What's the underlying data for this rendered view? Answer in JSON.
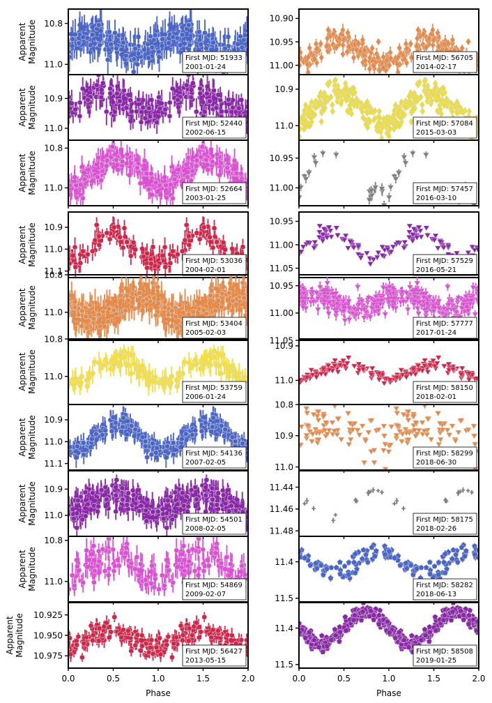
{
  "figure": {
    "ylabel": "Apparent\nMagnitude",
    "xlabel": "Phase",
    "xticks": [
      "0.0",
      "0.5",
      "1.0",
      "1.5",
      "2.0"
    ],
    "legend_prefix": "First MJD: "
  },
  "chart_data": [
    {
      "type": "scatter",
      "col": 0,
      "row": 0,
      "mjd": "51933",
      "date": "2001-01-24",
      "color": "#4a65c8",
      "marker": "circle",
      "ylim": [
        10.73,
        11.05
      ],
      "yticks": [
        "10.8",
        "11.0"
      ],
      "ytick_vals": [
        10.8,
        11.0
      ],
      "center": 10.9,
      "amp": 0.04,
      "noise": 0.035,
      "err": 0.05,
      "n": 150,
      "peak": 0.25,
      "title": "",
      "xlabel": "Phase",
      "ylabel": "Apparent Magnitude"
    },
    {
      "type": "scatter",
      "col": 0,
      "row": 1,
      "mjd": "52440",
      "date": "2002-06-15",
      "color": "#8a27a8",
      "marker": "circle",
      "ylim": [
        10.82,
        11.04
      ],
      "yticks": [
        "10.9",
        "11.0"
      ],
      "ytick_vals": [
        10.9,
        11.0
      ],
      "center": 10.92,
      "amp": 0.035,
      "noise": 0.025,
      "err": 0.03,
      "n": 110,
      "peak": 0.4
    },
    {
      "type": "scatter",
      "col": 0,
      "row": 2,
      "mjd": "52664",
      "date": "2003-01-25",
      "color": "#dd4fd4",
      "marker": "circle",
      "ylim": [
        10.76,
        11.09
      ],
      "yticks": [
        "10.8",
        "11.0"
      ],
      "ytick_vals": [
        10.8,
        11.0
      ],
      "center": 10.92,
      "amp": 0.07,
      "noise": 0.03,
      "err": 0.04,
      "n": 160,
      "peak": 0.55
    },
    {
      "type": "scatter",
      "col": 0,
      "row": 3,
      "mjd": "53036",
      "date": "2004-02-01",
      "color": "#d1254a",
      "marker": "circle",
      "ylim": [
        10.83,
        11.13
      ],
      "yticks": [
        "10.9",
        "11.0",
        "11.1"
      ],
      "ytick_vals": [
        10.9,
        11.0,
        11.1
      ],
      "center": 10.99,
      "amp": 0.07,
      "noise": 0.025,
      "err": 0.03,
      "n": 80,
      "peak": 0.5
    },
    {
      "type": "scatter",
      "col": 0,
      "row": 4,
      "mjd": "53404",
      "date": "2005-02-03",
      "color": "#e58a48",
      "marker": "circle",
      "ylim": [
        10.8,
        11.15
      ],
      "yticks": [
        "10.8",
        "11.0"
      ],
      "ytick_vals": [
        10.8,
        11.0
      ],
      "center": 10.97,
      "amp": 0.06,
      "noise": 0.035,
      "err": 0.05,
      "n": 220,
      "peak": 0.8
    },
    {
      "type": "scatter",
      "col": 0,
      "row": 5,
      "mjd": "53759",
      "date": "2006-01-24",
      "color": "#f5df3a",
      "marker": "circle",
      "ylim": [
        10.8,
        11.15
      ],
      "yticks": [
        "10.8",
        "11.0"
      ],
      "ytick_vals": [
        10.8,
        11.0
      ],
      "center": 10.97,
      "amp": 0.06,
      "noise": 0.025,
      "err": 0.04,
      "n": 70,
      "peak": 0.55
    },
    {
      "type": "scatter",
      "col": 0,
      "row": 6,
      "mjd": "54136",
      "date": "2007-02-05",
      "color": "#4a65c8",
      "marker": "circle",
      "ylim": [
        10.83,
        11.13
      ],
      "yticks": [
        "10.9",
        "11.0",
        "11.1"
      ],
      "ytick_vals": [
        10.9,
        11.0,
        11.1
      ],
      "center": 10.98,
      "amp": 0.06,
      "noise": 0.02,
      "err": 0.03,
      "n": 160,
      "peak": 0.55
    },
    {
      "type": "scatter",
      "col": 0,
      "row": 7,
      "mjd": "54501",
      "date": "2008-02-05",
      "color": "#8a27a8",
      "marker": "circle",
      "ylim": [
        10.83,
        11.08
      ],
      "yticks": [
        "10.9",
        "11.0"
      ],
      "ytick_vals": [
        10.9,
        11.0
      ],
      "center": 10.95,
      "amp": 0.03,
      "noise": 0.025,
      "err": 0.03,
      "n": 170,
      "peak": 0.5
    },
    {
      "type": "scatter",
      "col": 0,
      "row": 8,
      "mjd": "54869",
      "date": "2009-02-07",
      "color": "#dd4fd4",
      "marker": "circle",
      "ylim": [
        10.78,
        11.1
      ],
      "yticks": [
        "10.8",
        "11.0"
      ],
      "ytick_vals": [
        10.8,
        11.0
      ],
      "center": 10.93,
      "amp": 0.04,
      "noise": 0.04,
      "err": 0.04,
      "n": 80,
      "peak": 0.5
    },
    {
      "type": "scatter",
      "col": 0,
      "row": 9,
      "mjd": "56427",
      "date": "2013-05-15",
      "color": "#d1254a",
      "marker": "circle",
      "ylim": [
        10.91,
        10.99
      ],
      "yticks": [
        "10.925",
        "10.950",
        "10.975"
      ],
      "ytick_vals": [
        10.925,
        10.95,
        10.975
      ],
      "center": 10.955,
      "amp": 0.01,
      "noise": 0.007,
      "err": 0.006,
      "n": 110,
      "peak": 0.45
    },
    {
      "type": "scatter",
      "col": 1,
      "row": 0,
      "mjd": "56705",
      "date": "2014-02-17",
      "color": "#e58a48",
      "marker": "diamond",
      "ylim": [
        10.88,
        11.02
      ],
      "yticks": [
        "10.90",
        "10.95",
        "11.00"
      ],
      "ytick_vals": [
        10.9,
        10.95,
        11.0
      ],
      "center": 10.97,
      "amp": 0.025,
      "noise": 0.012,
      "err": 0.008,
      "n": 130,
      "peak": 0.45
    },
    {
      "type": "scatter",
      "col": 1,
      "row": 1,
      "mjd": "57084",
      "date": "2015-03-03",
      "color": "#ecdd3e",
      "marker": "diamond",
      "ylim": [
        10.86,
        11.04
      ],
      "yticks": [
        "10.9",
        "11.0"
      ],
      "ytick_vals": [
        10.9,
        11.0
      ],
      "center": 10.95,
      "amp": 0.045,
      "noise": 0.02,
      "err": 0.005,
      "n": 190,
      "peak": 0.45
    },
    {
      "type": "scatter",
      "col": 1,
      "row": 2,
      "mjd": "57457",
      "date": "2016-03-10",
      "color": "#7f7f7f",
      "marker": "triangle",
      "ylim": [
        10.92,
        11.03
      ],
      "yticks": [
        "10.95",
        "11.00"
      ],
      "ytick_vals": [
        10.95,
        11.0
      ],
      "center": 10.98,
      "amp": 0.03,
      "noise": 0.008,
      "err": 0.006,
      "n": 20,
      "peak": 0.35
    },
    {
      "type": "scatter",
      "col": 1,
      "row": 3,
      "mjd": "57529",
      "date": "2016-05-21",
      "color": "#8a27a8",
      "marker": "triangle",
      "ylim": [
        10.93,
        11.07
      ],
      "yticks": [
        "10.95",
        "11.00",
        "11.05"
      ],
      "ytick_vals": [
        10.95,
        11.0,
        11.05
      ],
      "center": 11.0,
      "amp": 0.025,
      "noise": 0.01,
      "err": 0.003,
      "n": 60,
      "peak": 0.35
    },
    {
      "type": "scatter",
      "col": 1,
      "row": 4,
      "mjd": "57777",
      "date": "2017-01-24",
      "color": "#dd4fd4",
      "marker": "triangle",
      "ylim": [
        10.93,
        11.05
      ],
      "yticks": [
        "10.95",
        "11.00",
        "11.05"
      ],
      "ytick_vals": [
        10.95,
        11.0,
        11.05
      ],
      "center": 10.98,
      "amp": 0.012,
      "noise": 0.012,
      "err": 0.007,
      "n": 180,
      "peak": 0.15
    },
    {
      "type": "scatter",
      "col": 1,
      "row": 5,
      "mjd": "58150",
      "date": "2018-02-01",
      "color": "#d1254a",
      "marker": "triangle",
      "ylim": [
        10.88,
        11.07
      ],
      "yticks": [
        "10.9",
        "11.0"
      ],
      "ytick_vals": [
        10.9,
        11.0
      ],
      "center": 10.975,
      "amp": 0.02,
      "noise": 0.008,
      "err": 0.003,
      "n": 90,
      "peak": 0.5
    },
    {
      "type": "scatter",
      "col": 1,
      "row": 6,
      "mjd": "58299",
      "date": "2018-06-30",
      "color": "#e58a48",
      "marker": "triangle",
      "ylim": [
        10.8,
        11.01
      ],
      "yticks": [
        "10.8",
        "10.9",
        "11.0"
      ],
      "ytick_vals": [
        10.8,
        10.9,
        11.0
      ],
      "center": 10.89,
      "amp": 0.02,
      "noise": 0.035,
      "err": 0.004,
      "n": 80,
      "peak": 0.4
    },
    {
      "type": "scatter",
      "col": 1,
      "row": 7,
      "mjd": "58175",
      "date": "2018-02-26",
      "color": "#7f7f7f",
      "marker": "plus",
      "ylim": [
        11.425,
        11.485
      ],
      "yticks": [
        "11.44",
        "11.46",
        "11.48"
      ],
      "ytick_vals": [
        11.44,
        11.46,
        11.48
      ],
      "center": 11.455,
      "amp": 0.012,
      "noise": 0.002,
      "err": 0.0015,
      "n": 14,
      "peak": 0.85
    },
    {
      "type": "scatter",
      "col": 1,
      "row": 8,
      "mjd": "58282",
      "date": "2018-06-13",
      "color": "#4a65c8",
      "marker": "pentagon",
      "ylim": [
        11.33,
        11.51
      ],
      "yticks": [
        "11.4",
        "11.5"
      ],
      "ytick_vals": [
        11.4,
        11.5
      ],
      "center": 11.4,
      "amp": 0.03,
      "noise": 0.012,
      "err": 0.006,
      "n": 70,
      "peak": 0.9
    },
    {
      "type": "scatter",
      "col": 1,
      "row": 9,
      "mjd": "58508",
      "date": "2019-01-25",
      "color": "#8a27a8",
      "marker": "pentagon",
      "ylim": [
        11.33,
        11.51
      ],
      "yticks": [
        "11.4",
        "11.5"
      ],
      "ytick_vals": [
        11.4,
        11.5
      ],
      "center": 11.4,
      "amp": 0.045,
      "noise": 0.01,
      "err": 0.004,
      "n": 220,
      "peak": 0.75
    }
  ]
}
